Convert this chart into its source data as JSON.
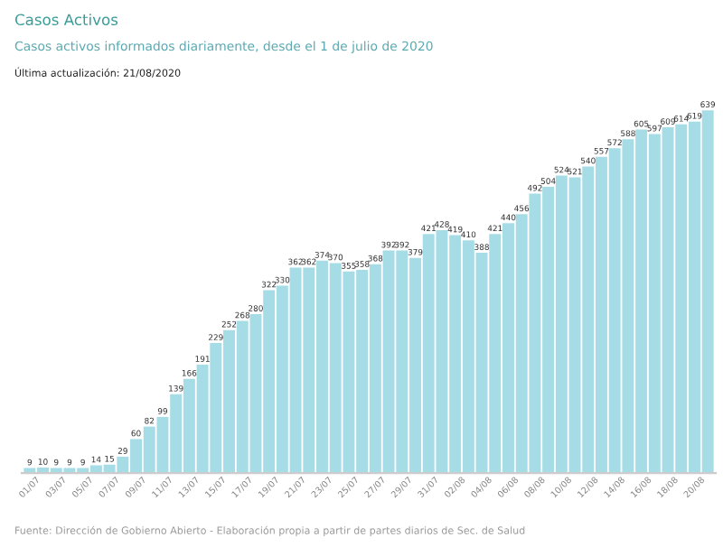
{
  "chart_data": {
    "type": "bar",
    "title": "Casos Activos",
    "subtitle": "Casos activos informados diariamente, desde el 1 de julio de 2020",
    "annotations": [
      "Última actualización: 21/08/2020",
      "Fuente: Dirección de Gobierno Abierto - Elaboración propia a partir de partes diarios de Sec. de Salud"
    ],
    "categories": [
      "01/07",
      null,
      "03/07",
      null,
      "05/07",
      null,
      "07/07",
      null,
      "09/07",
      null,
      "11/07",
      null,
      "13/07",
      null,
      "15/07",
      null,
      "17/07",
      null,
      "19/07",
      null,
      "21/07",
      null,
      "23/07",
      null,
      "25/07",
      null,
      "27/07",
      null,
      "29/07",
      null,
      "31/07",
      null,
      "02/08",
      null,
      "04/08",
      null,
      "06/08",
      null,
      "08/08",
      null,
      "10/08",
      null,
      "12/08",
      null,
      "14/08",
      null,
      "16/08",
      null,
      "18/08",
      null,
      "20/08",
      null
    ],
    "values": [
      9,
      10,
      9,
      9,
      9,
      14,
      15,
      29,
      60,
      82,
      99,
      139,
      166,
      191,
      229,
      252,
      268,
      280,
      322,
      330,
      362,
      362,
      374,
      370,
      355,
      358,
      368,
      392,
      392,
      379,
      421,
      428,
      419,
      410,
      388,
      421,
      440,
      456,
      492,
      504,
      524,
      521,
      540,
      557,
      572,
      588,
      605,
      597,
      609,
      614,
      619,
      639
    ],
    "color": "#a6dce6",
    "data_labels": true,
    "grid": false,
    "legend": false
  }
}
